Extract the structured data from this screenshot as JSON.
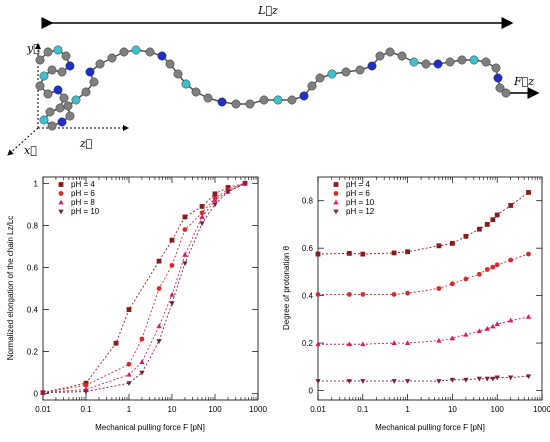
{
  "schematic": {
    "labels": {
      "length": "L⃗z",
      "force": "F⃗z",
      "y_axis": "y⃗",
      "x_axis": "x⃗",
      "z_axis": "z⃗"
    },
    "bead_colors": {
      "gray": "#7f7f7f",
      "blue": "#1f2fc8",
      "cyan": "#3fc0d0"
    }
  },
  "chart_data": [
    {
      "type": "line",
      "xscale": "log",
      "xlim": [
        0.01,
        1000
      ],
      "ylim": [
        -0.03,
        1.03
      ],
      "xticks": [
        0.01,
        0.1,
        1,
        10,
        100,
        1000
      ],
      "xtick_labels": [
        "0.01",
        "0.1",
        "1",
        "10",
        "100",
        "1000"
      ],
      "yticks": [
        0,
        0.2,
        0.4,
        0.6,
        0.8,
        1
      ],
      "ytick_labels": [
        "0",
        "0.2",
        "0.4",
        "0.6",
        "0.8",
        "1"
      ],
      "xlabel": "Mechanical pulling force F [pN]",
      "ylabel": "Normalized elongation of the chain Lz/Lc",
      "legend_position": "top-left",
      "series": [
        {
          "name": "pH = 4",
          "color": "#8b1a1a",
          "marker": "square",
          "x": [
            0.01,
            0.1,
            0.5,
            1,
            5,
            10,
            20,
            50,
            100,
            200,
            500
          ],
          "y": [
            0.005,
            0.05,
            0.24,
            0.4,
            0.63,
            0.73,
            0.84,
            0.89,
            0.95,
            0.98,
            1.0
          ]
        },
        {
          "name": "pH = 6",
          "color": "#d42b2b",
          "marker": "circle",
          "x": [
            0.01,
            0.1,
            1,
            2,
            5,
            10,
            20,
            50,
            100,
            200,
            500
          ],
          "y": [
            0.005,
            0.04,
            0.14,
            0.26,
            0.5,
            0.61,
            0.78,
            0.86,
            0.93,
            0.97,
            1.0
          ]
        },
        {
          "name": "pH = 8",
          "color": "#d81b60",
          "marker": "triangle-up",
          "x": [
            0.01,
            0.1,
            1,
            2,
            5,
            10,
            20,
            50,
            100,
            200,
            500
          ],
          "y": [
            0.005,
            0.02,
            0.09,
            0.15,
            0.32,
            0.47,
            0.66,
            0.84,
            0.92,
            0.96,
            1.0
          ]
        },
        {
          "name": "pH = 10",
          "color": "#7b1e3c",
          "marker": "triangle-down",
          "x": [
            0.01,
            0.1,
            1,
            2,
            5,
            10,
            20,
            50,
            100,
            200,
            500
          ],
          "y": [
            0.005,
            0.01,
            0.05,
            0.1,
            0.25,
            0.43,
            0.62,
            0.81,
            0.9,
            0.96,
            1.0
          ]
        }
      ]
    },
    {
      "type": "line",
      "xscale": "log",
      "xlim": [
        0.01,
        1000
      ],
      "ylim": [
        -0.04,
        0.9
      ],
      "xticks": [
        0.01,
        0.1,
        1,
        10,
        100,
        1000
      ],
      "xtick_labels": [
        "0.01",
        "0.1",
        "1",
        "10",
        "100",
        "1000"
      ],
      "yticks": [
        0,
        0.2,
        0.4,
        0.6,
        0.8
      ],
      "ytick_labels": [
        "0",
        "0.2",
        "0.4",
        "0.6",
        "0.8"
      ],
      "xlabel": "Mechanical pulling force F [pN]",
      "ylabel": "Degree of protonation θ",
      "legend_position": "top-left",
      "series": [
        {
          "name": "pH = 4",
          "color": "#8b1a1a",
          "marker": "square",
          "x": [
            0.01,
            0.05,
            0.1,
            0.5,
            1,
            5,
            10,
            20,
            40,
            60,
            80,
            100,
            200,
            500
          ],
          "y": [
            0.575,
            0.578,
            0.575,
            0.58,
            0.585,
            0.61,
            0.62,
            0.65,
            0.68,
            0.7,
            0.72,
            0.74,
            0.78,
            0.835
          ]
        },
        {
          "name": "pH = 6",
          "color": "#d42b2b",
          "marker": "circle",
          "x": [
            0.01,
            0.05,
            0.1,
            0.5,
            1,
            5,
            10,
            20,
            40,
            60,
            80,
            100,
            200,
            500
          ],
          "y": [
            0.405,
            0.405,
            0.405,
            0.405,
            0.41,
            0.43,
            0.45,
            0.47,
            0.49,
            0.51,
            0.52,
            0.53,
            0.55,
            0.575
          ]
        },
        {
          "name": "pH = 10",
          "color": "#d81b60",
          "marker": "triangle-up",
          "x": [
            0.01,
            0.05,
            0.1,
            0.5,
            1,
            5,
            10,
            20,
            40,
            60,
            80,
            100,
            200,
            500
          ],
          "y": [
            0.195,
            0.195,
            0.195,
            0.2,
            0.2,
            0.21,
            0.22,
            0.235,
            0.25,
            0.26,
            0.27,
            0.28,
            0.295,
            0.31
          ]
        },
        {
          "name": "pH = 12",
          "color": "#7b1e3c",
          "marker": "triangle-down",
          "x": [
            0.01,
            0.05,
            0.1,
            0.5,
            1,
            5,
            10,
            20,
            40,
            60,
            80,
            100,
            200,
            500
          ],
          "y": [
            0.04,
            0.04,
            0.04,
            0.04,
            0.04,
            0.04,
            0.045,
            0.045,
            0.05,
            0.05,
            0.05,
            0.055,
            0.055,
            0.06
          ]
        }
      ]
    }
  ]
}
